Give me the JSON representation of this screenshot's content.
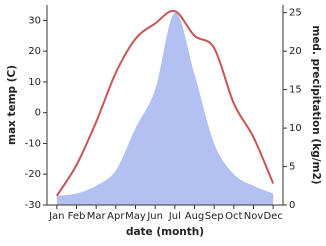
{
  "chart_data": {
    "type": "line",
    "x_label": "date (month)",
    "y_label": "max temp (C)",
    "y2_label": "med. precipitation (kg/m2)",
    "categories": [
      "Jan",
      "Feb",
      "Mar",
      "Apr",
      "May",
      "Jun",
      "Jul",
      "Aug",
      "Sep",
      "Oct",
      "Nov",
      "Dec"
    ],
    "series": [
      {
        "name": "max temp",
        "color": "#c85555",
        "values": [
          -27,
          -17,
          -3,
          13,
          24,
          29,
          33,
          25,
          21,
          3,
          -8,
          -23
        ]
      },
      {
        "name": "med. precipitation",
        "color": "#b3c0f2",
        "axis": "y2",
        "values": [
          1.2,
          1.5,
          2.5,
          4.5,
          10,
          15,
          25,
          17,
          8,
          4,
          2.5,
          1.5
        ]
      }
    ],
    "ylim": [
      -30,
      35
    ],
    "yticks": [
      -30,
      -20,
      -10,
      0,
      10,
      20,
      30
    ],
    "y2lim": [
      0,
      26
    ],
    "y2ticks": [
      0,
      5,
      10,
      15,
      20,
      25
    ]
  }
}
